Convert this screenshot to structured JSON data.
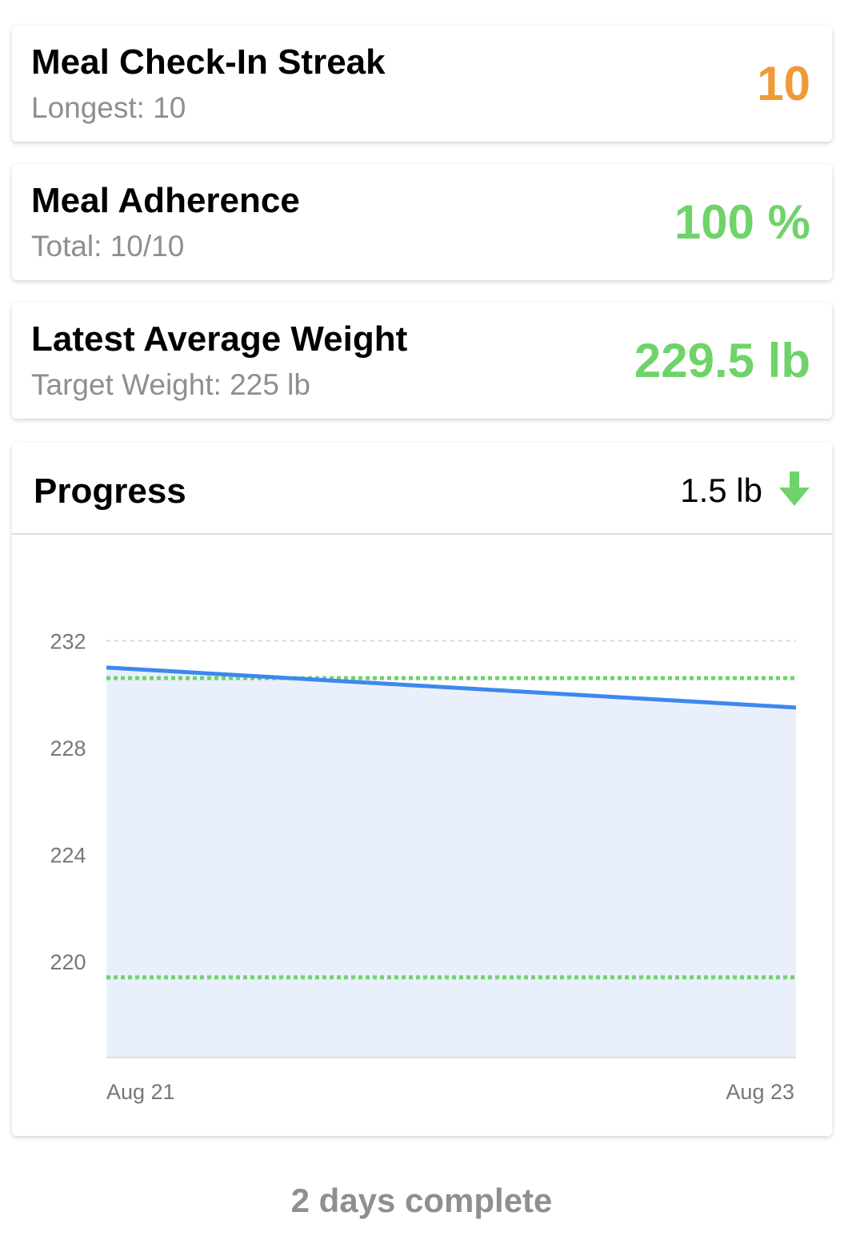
{
  "cards": [
    {
      "title": "Meal Check-In Streak",
      "subtitle": "Longest: 10",
      "value": "10",
      "value_color": "#f09a37"
    },
    {
      "title": "Meal Adherence",
      "subtitle": "Total: 10/10",
      "value": "100 %",
      "value_color": "#6fd36a"
    },
    {
      "title": "Latest Average Weight",
      "subtitle": "Target Weight: 225 lb",
      "value": "229.5 lb",
      "value_color": "#6fd36a"
    }
  ],
  "progress": {
    "title": "Progress",
    "change": "1.5 lb"
  },
  "chart_data": {
    "type": "line",
    "x": [
      "Aug 21",
      "Aug 23"
    ],
    "values": [
      231,
      229.5
    ],
    "color": "#3d87f0",
    "area_color": "#eaf0fb",
    "ylim": [
      216.4,
      235.4
    ],
    "yticks": [
      220,
      224,
      228,
      232
    ],
    "grid": true,
    "reference_lines": [
      230.6,
      219.4
    ],
    "reference_color": "#6fd36a"
  },
  "footer": "2 days complete"
}
